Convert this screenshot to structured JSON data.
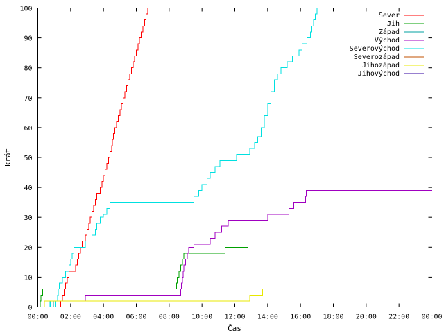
{
  "chart_data": {
    "type": "line",
    "title": "",
    "xlabel": "Čas",
    "ylabel": "krát",
    "xlim": [
      0,
      24
    ],
    "ylim": [
      0,
      100
    ],
    "x_unit": "hours",
    "x_ticks": [
      {
        "value": 0,
        "label": "00:00"
      },
      {
        "value": 2,
        "label": "02:00"
      },
      {
        "value": 4,
        "label": "04:00"
      },
      {
        "value": 6,
        "label": "06:00"
      },
      {
        "value": 8,
        "label": "08:00"
      },
      {
        "value": 10,
        "label": "10:00"
      },
      {
        "value": 12,
        "label": "12:00"
      },
      {
        "value": 14,
        "label": "14:00"
      },
      {
        "value": 16,
        "label": "16:00"
      },
      {
        "value": 18,
        "label": "18:00"
      },
      {
        "value": 20,
        "label": "20:00"
      },
      {
        "value": 22,
        "label": "22:00"
      },
      {
        "value": 24,
        "label": "00:00"
      }
    ],
    "y_ticks": [
      0,
      10,
      20,
      30,
      40,
      50,
      60,
      70,
      80,
      90,
      100
    ],
    "grid": false,
    "legend_position": "top-right",
    "series": [
      {
        "name": "Sever",
        "color": "#ff0000",
        "step": true,
        "points": [
          [
            1.3,
            0
          ],
          [
            1.4,
            2
          ],
          [
            1.5,
            4
          ],
          [
            1.6,
            6
          ],
          [
            1.7,
            8
          ],
          [
            1.8,
            10
          ],
          [
            1.9,
            12
          ],
          [
            2.2,
            12
          ],
          [
            2.3,
            14
          ],
          [
            2.4,
            16
          ],
          [
            2.5,
            18
          ],
          [
            2.6,
            20
          ],
          [
            2.7,
            22
          ],
          [
            2.9,
            24
          ],
          [
            3.0,
            26
          ],
          [
            3.1,
            28
          ],
          [
            3.2,
            30
          ],
          [
            3.3,
            32
          ],
          [
            3.4,
            34
          ],
          [
            3.5,
            36
          ],
          [
            3.6,
            38
          ],
          [
            3.8,
            40
          ],
          [
            3.9,
            42
          ],
          [
            4.0,
            44
          ],
          [
            4.1,
            46
          ],
          [
            4.2,
            48
          ],
          [
            4.3,
            50
          ],
          [
            4.4,
            52
          ],
          [
            4.5,
            54
          ],
          [
            4.55,
            56
          ],
          [
            4.6,
            58
          ],
          [
            4.7,
            60
          ],
          [
            4.8,
            62
          ],
          [
            4.9,
            64
          ],
          [
            5.0,
            66
          ],
          [
            5.1,
            68
          ],
          [
            5.2,
            70
          ],
          [
            5.3,
            72
          ],
          [
            5.4,
            74
          ],
          [
            5.5,
            76
          ],
          [
            5.6,
            78
          ],
          [
            5.7,
            80
          ],
          [
            5.8,
            82
          ],
          [
            5.9,
            84
          ],
          [
            6.0,
            86
          ],
          [
            6.1,
            88
          ],
          [
            6.2,
            90
          ],
          [
            6.3,
            92
          ],
          [
            6.4,
            94
          ],
          [
            6.5,
            96
          ],
          [
            6.6,
            98
          ],
          [
            6.7,
            100
          ]
        ]
      },
      {
        "name": "Jih",
        "color": "#00a000",
        "step": true,
        "points": [
          [
            0,
            0
          ],
          [
            0.15,
            2
          ],
          [
            0.2,
            4
          ],
          [
            0.3,
            6
          ],
          [
            8.3,
            6
          ],
          [
            8.45,
            8
          ],
          [
            8.5,
            10
          ],
          [
            8.6,
            12
          ],
          [
            8.7,
            14
          ],
          [
            8.8,
            16
          ],
          [
            8.9,
            18
          ],
          [
            11.3,
            18
          ],
          [
            11.4,
            20
          ],
          [
            12.7,
            20
          ],
          [
            12.8,
            22
          ],
          [
            24,
            22
          ]
        ]
      },
      {
        "name": "Západ",
        "color": "#00a0a0",
        "step": true,
        "points": [
          [
            0.75,
            0
          ],
          [
            0.8,
            2
          ],
          [
            0.9,
            2
          ],
          [
            0.95,
            0
          ]
        ]
      },
      {
        "name": "Východ",
        "color": "#a000c0",
        "step": true,
        "points": [
          [
            2.85,
            2
          ],
          [
            2.9,
            4
          ],
          [
            8.6,
            4
          ],
          [
            8.7,
            6
          ],
          [
            8.75,
            8
          ],
          [
            8.8,
            10
          ],
          [
            8.85,
            12
          ],
          [
            8.9,
            14
          ],
          [
            9.0,
            16
          ],
          [
            9.1,
            18
          ],
          [
            9.2,
            20
          ],
          [
            9.5,
            21
          ],
          [
            10.3,
            21
          ],
          [
            10.5,
            23
          ],
          [
            10.8,
            25
          ],
          [
            11.2,
            27
          ],
          [
            11.6,
            29
          ],
          [
            13.9,
            29
          ],
          [
            14.0,
            31
          ],
          [
            15.2,
            31
          ],
          [
            15.3,
            33
          ],
          [
            15.6,
            35
          ],
          [
            16.2,
            35
          ],
          [
            16.3,
            37
          ],
          [
            16.35,
            39
          ],
          [
            24,
            39
          ]
        ]
      },
      {
        "name": "Severovýchod",
        "color": "#00e0e0",
        "step": true,
        "points": [
          [
            0.65,
            0
          ],
          [
            0.7,
            2
          ],
          [
            0.75,
            0
          ],
          [
            1.05,
            0
          ],
          [
            1.1,
            2
          ],
          [
            1.2,
            4
          ],
          [
            1.25,
            6
          ],
          [
            1.3,
            8
          ],
          [
            1.5,
            10
          ],
          [
            1.7,
            12
          ],
          [
            1.9,
            14
          ],
          [
            2.0,
            16
          ],
          [
            2.1,
            18
          ],
          [
            2.2,
            20
          ],
          [
            2.8,
            20
          ],
          [
            2.9,
            22
          ],
          [
            3.1,
            22
          ],
          [
            3.3,
            24
          ],
          [
            3.5,
            26
          ],
          [
            3.6,
            28
          ],
          [
            3.8,
            30
          ],
          [
            4.0,
            31
          ],
          [
            4.2,
            33
          ],
          [
            4.4,
            35
          ],
          [
            9.3,
            35
          ],
          [
            9.5,
            37
          ],
          [
            9.8,
            39
          ],
          [
            10.0,
            41
          ],
          [
            10.3,
            43
          ],
          [
            10.5,
            45
          ],
          [
            10.8,
            47
          ],
          [
            11.1,
            49
          ],
          [
            11.8,
            49
          ],
          [
            12.1,
            51
          ],
          [
            12.8,
            51
          ],
          [
            12.9,
            53
          ],
          [
            13.2,
            55
          ],
          [
            13.4,
            57
          ],
          [
            13.6,
            60
          ],
          [
            13.8,
            64
          ],
          [
            14.0,
            68
          ],
          [
            14.2,
            72
          ],
          [
            14.4,
            76
          ],
          [
            14.6,
            78
          ],
          [
            14.8,
            80
          ],
          [
            15.0,
            80
          ],
          [
            15.2,
            82
          ],
          [
            15.5,
            84
          ],
          [
            15.9,
            86
          ],
          [
            16.1,
            88
          ],
          [
            16.4,
            90
          ],
          [
            16.6,
            92
          ],
          [
            16.7,
            94
          ],
          [
            16.8,
            96
          ],
          [
            16.9,
            98
          ],
          [
            17.0,
            100
          ]
        ]
      },
      {
        "name": "Severozápad",
        "color": "#c05000",
        "step": true,
        "points": []
      },
      {
        "name": "Jihozápad",
        "color": "#e8e800",
        "step": true,
        "points": [
          [
            0.35,
            0
          ],
          [
            0.4,
            2
          ],
          [
            12.8,
            2
          ],
          [
            12.9,
            4
          ],
          [
            13.6,
            4
          ],
          [
            13.7,
            6
          ],
          [
            24,
            6
          ]
        ]
      },
      {
        "name": "Jihovýchod",
        "color": "#3000a0",
        "step": true,
        "points": []
      }
    ]
  }
}
